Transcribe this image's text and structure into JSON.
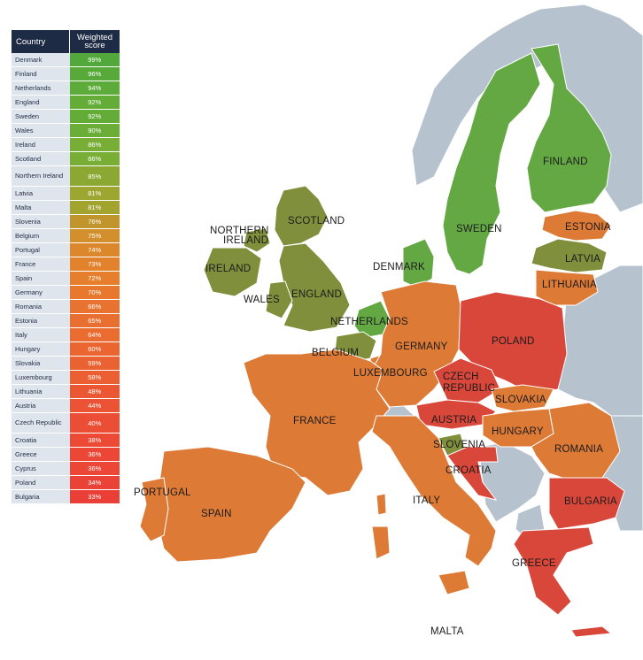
{
  "table": {
    "header_country": "Country",
    "header_score": "Weighted score",
    "rows": [
      {
        "country": "Denmark",
        "score": "99%",
        "color": "#52a83a"
      },
      {
        "country": "Finland",
        "score": "96%",
        "color": "#57a93a"
      },
      {
        "country": "Netherlands",
        "score": "94%",
        "color": "#5dab3a"
      },
      {
        "country": "England",
        "score": "92%",
        "color": "#63ac38"
      },
      {
        "country": "Sweden",
        "score": "92%",
        "color": "#63ac38"
      },
      {
        "country": "Wales",
        "score": "90%",
        "color": "#6aad37"
      },
      {
        "country": "Ireland",
        "score": "86%",
        "color": "#78ad36"
      },
      {
        "country": "Scotland",
        "score": "86%",
        "color": "#78ad36"
      },
      {
        "country": "Northern Ireland",
        "score": "85%",
        "color": "#8aa832"
      },
      {
        "country": "Latvia",
        "score": "81%",
        "color": "#9ca630"
      },
      {
        "country": "Malta",
        "score": "81%",
        "color": "#a2a42f"
      },
      {
        "country": "Slovenia",
        "score": "76%",
        "color": "#c1952c"
      },
      {
        "country": "Belgium",
        "score": "75%",
        "color": "#d28f2c"
      },
      {
        "country": "Portugal",
        "score": "74%",
        "color": "#dc872c"
      },
      {
        "country": "France",
        "score": "73%",
        "color": "#e3822d"
      },
      {
        "country": "Spain",
        "score": "72%",
        "color": "#e57e2d"
      },
      {
        "country": "Germany",
        "score": "70%",
        "color": "#e7782e"
      },
      {
        "country": "Romania",
        "score": "66%",
        "color": "#e8722f"
      },
      {
        "country": "Estonia",
        "score": "65%",
        "color": "#e96f30"
      },
      {
        "country": "Italy",
        "score": "64%",
        "color": "#ea6c30"
      },
      {
        "country": "Hungary",
        "score": "60%",
        "color": "#eb6531"
      },
      {
        "country": "Slovakia",
        "score": "59%",
        "color": "#eb6232"
      },
      {
        "country": "Luxembourg",
        "score": "58%",
        "color": "#ec5f32"
      },
      {
        "country": "Lithuania",
        "score": "48%",
        "color": "#ec5733"
      },
      {
        "country": "Austria",
        "score": "44%",
        "color": "#ec5334"
      },
      {
        "country": "Czech Republic",
        "score": "40%",
        "color": "#ec4e35"
      },
      {
        "country": "Croatia",
        "score": "38%",
        "color": "#ec4a35"
      },
      {
        "country": "Greece",
        "score": "36%",
        "color": "#eb4636"
      },
      {
        "country": "Cyprus",
        "score": "36%",
        "color": "#eb4636"
      },
      {
        "country": "Poland",
        "score": "34%",
        "color": "#ea4237"
      },
      {
        "country": "Bulgaria",
        "score": "33%",
        "color": "#e93f37"
      }
    ]
  },
  "map_labels": {
    "finland": "FINLAND",
    "sweden": "SWEDEN",
    "estonia": "ESTONIA",
    "latvia": "LATVIA",
    "lithuania": "LITHUANIA",
    "denmark": "DENMARK",
    "scotland": "SCOTLAND",
    "northern_ireland_1": "NORTHERN",
    "northern_ireland_2": "IRELAND",
    "ireland": "IRELAND",
    "wales": "WALES",
    "england": "ENGLAND",
    "netherlands": "NETHERLANDS",
    "belgium": "BELGIUM",
    "luxembourg": "LUXEMBOURG",
    "germany": "GERMANY",
    "poland": "POLAND",
    "czech_1": "CZECH",
    "czech_2": "REPUBLIC",
    "slovakia": "SLOVAKIA",
    "austria": "AUSTRIA",
    "hungary": "HUNGARY",
    "slovenia": "SLOVENIA",
    "croatia": "CROATIA",
    "romania": "ROMANIA",
    "bulgaria": "BULGARIA",
    "france": "FRANCE",
    "portugal": "PORTUGAL",
    "spain": "SPAIN",
    "italy": "ITALY",
    "greece": "GREECE",
    "malta": "MALTA"
  },
  "colors": {
    "non_member": "#b6c3cf",
    "green": "#64a844",
    "olive": "#7f8f3c",
    "orange": "#dc7a36",
    "red": "#d9473b",
    "header": "#1e2b45"
  }
}
